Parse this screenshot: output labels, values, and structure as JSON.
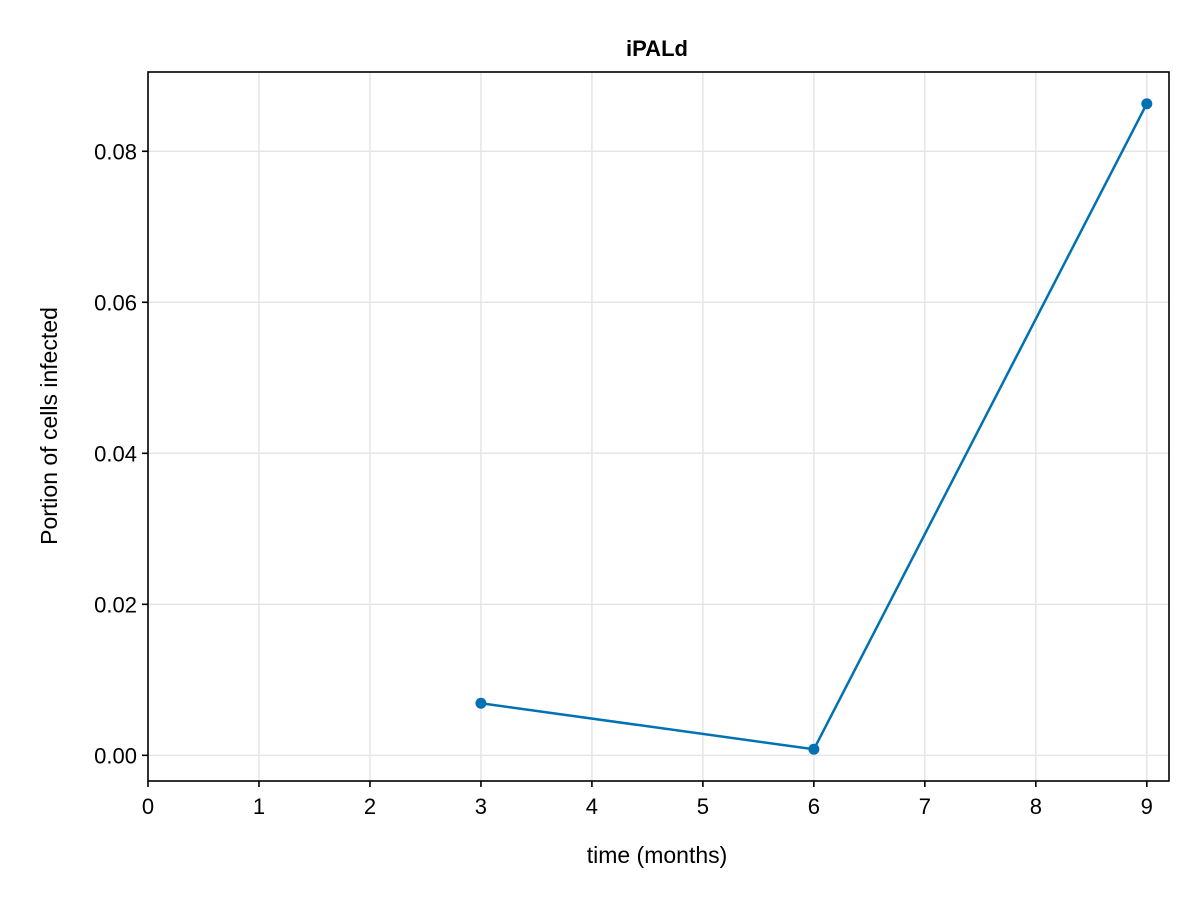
{
  "chart_data": {
    "type": "line",
    "title": "iPALd",
    "xlabel": "time (months)",
    "ylabel": "Portion of cells infected",
    "xlim": [
      0,
      9.2
    ],
    "ylim": [
      -0.0034,
      0.0905
    ],
    "x_ticks": [
      0,
      1,
      2,
      3,
      4,
      5,
      6,
      7,
      8,
      9
    ],
    "x_tick_labels": [
      "0",
      "1",
      "2",
      "3",
      "4",
      "5",
      "6",
      "7",
      "8",
      "9"
    ],
    "y_ticks": [
      0,
      0.02,
      0.04,
      0.06,
      0.08
    ],
    "y_tick_labels": [
      "0.00",
      "0.02",
      "0.04",
      "0.06",
      "0.08"
    ],
    "grid": true,
    "series": [
      {
        "x": [
          3,
          6,
          9
        ],
        "y": [
          0.0069,
          0.0008,
          0.0863
        ],
        "color": "#0072b2",
        "markers": true
      }
    ]
  }
}
